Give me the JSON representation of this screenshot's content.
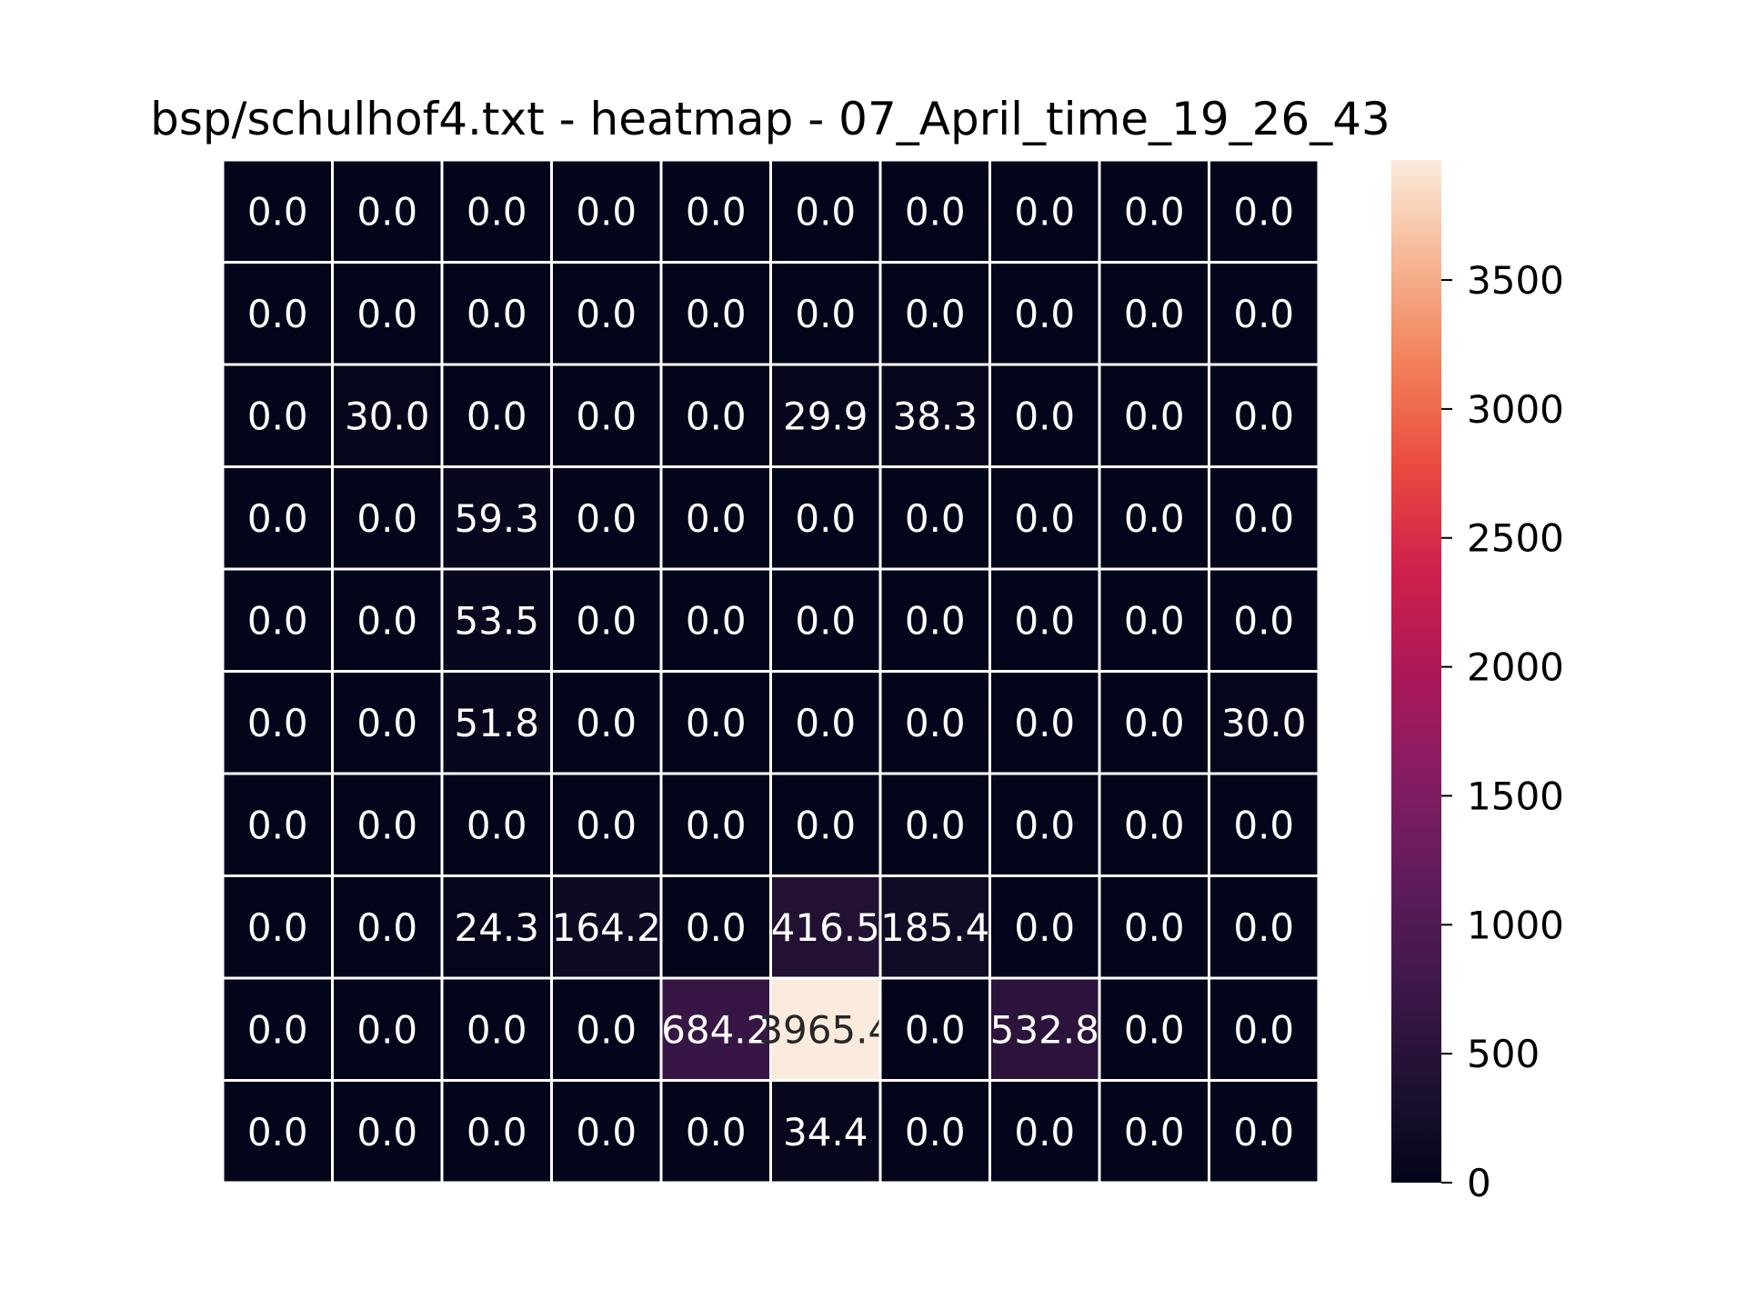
{
  "chart_data": {
    "type": "heatmap",
    "title": "bsp/schulhof4.txt - heatmap - 07_April_time_19_26_43",
    "rows": 10,
    "cols": 10,
    "values": [
      [
        0.0,
        0.0,
        0.0,
        0.0,
        0.0,
        0.0,
        0.0,
        0.0,
        0.0,
        0.0
      ],
      [
        0.0,
        0.0,
        0.0,
        0.0,
        0.0,
        0.0,
        0.0,
        0.0,
        0.0,
        0.0
      ],
      [
        0.0,
        30.0,
        0.0,
        0.0,
        0.0,
        29.9,
        38.3,
        0.0,
        0.0,
        0.0
      ],
      [
        0.0,
        0.0,
        59.3,
        0.0,
        0.0,
        0.0,
        0.0,
        0.0,
        0.0,
        0.0
      ],
      [
        0.0,
        0.0,
        53.5,
        0.0,
        0.0,
        0.0,
        0.0,
        0.0,
        0.0,
        0.0
      ],
      [
        0.0,
        0.0,
        51.8,
        0.0,
        0.0,
        0.0,
        0.0,
        0.0,
        0.0,
        30.0
      ],
      [
        0.0,
        0.0,
        0.0,
        0.0,
        0.0,
        0.0,
        0.0,
        0.0,
        0.0,
        0.0
      ],
      [
        0.0,
        0.0,
        24.3,
        164.2,
        0.0,
        416.5,
        185.4,
        0.0,
        0.0,
        0.0
      ],
      [
        0.0,
        0.0,
        0.0,
        0.0,
        684.2,
        3965.4,
        0.0,
        532.8,
        0.0,
        0.0
      ],
      [
        0.0,
        0.0,
        0.0,
        0.0,
        0.0,
        34.4,
        0.0,
        0.0,
        0.0,
        0.0
      ]
    ],
    "value_format_decimals": 1,
    "colorbar": {
      "range": [
        0,
        3965.4
      ],
      "ticks": [
        0,
        500,
        1000,
        1500,
        2000,
        2500,
        3000,
        3500
      ]
    },
    "colormap": "rocket",
    "cell_border_color": "#ffffff",
    "label_color_dark": "#ffffff",
    "label_color_light": "#262626",
    "grid": true
  }
}
